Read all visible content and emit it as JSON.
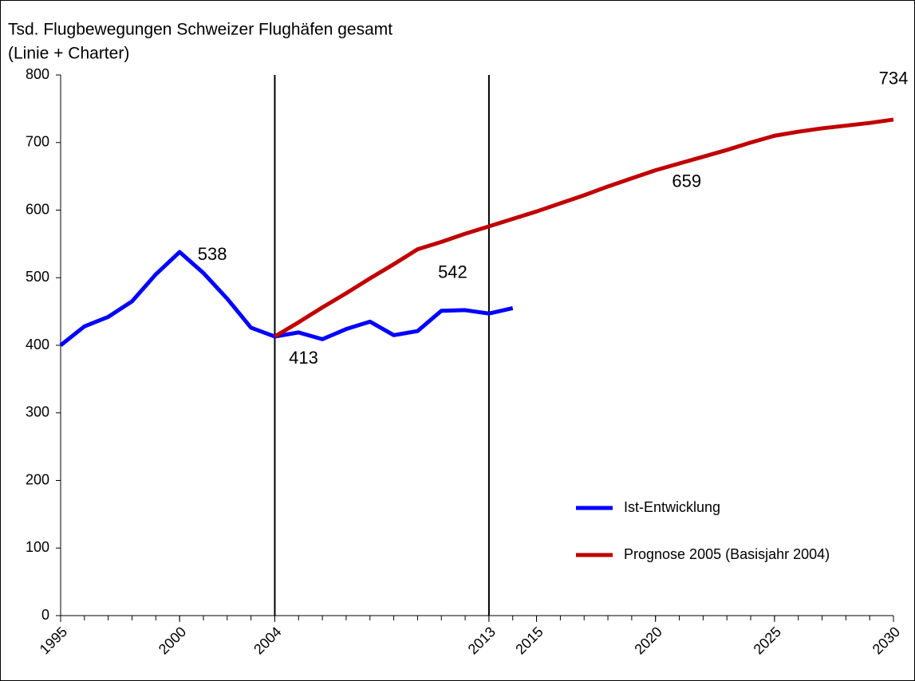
{
  "chart_data": {
    "type": "line",
    "title": "Tsd. Flugbewegungen Schweizer Flughäfen gesamt",
    "subtitle": "(Linie + Charter)",
    "x": [
      1995,
      1996,
      1997,
      1998,
      1999,
      2000,
      2001,
      2002,
      2003,
      2004,
      2005,
      2006,
      2007,
      2008,
      2009,
      2010,
      2011,
      2012,
      2013,
      2014,
      2015,
      2016,
      2017,
      2018,
      2019,
      2020,
      2021,
      2022,
      2023,
      2024,
      2025,
      2026,
      2027,
      2028,
      2029,
      2030
    ],
    "series": [
      {
        "name": "Ist-Entwicklung",
        "color": "#0000ff",
        "values": [
          400,
          428,
          442,
          465,
          505,
          538,
          507,
          469,
          426,
          413,
          419,
          409,
          424,
          435,
          415,
          421,
          451,
          452,
          447,
          455,
          null,
          null,
          null,
          null,
          null,
          null,
          null,
          null,
          null,
          null,
          null,
          null,
          null,
          null,
          null,
          null
        ]
      },
      {
        "name": "Prognose 2005 (Basisjahr 2004)",
        "color": "#c00000",
        "values": [
          null,
          null,
          null,
          null,
          null,
          null,
          null,
          null,
          null,
          413,
          434,
          456,
          477,
          499,
          520,
          542,
          553,
          565,
          576,
          587,
          598,
          610,
          622,
          635,
          647,
          659,
          669,
          679,
          689,
          700,
          710,
          716,
          721,
          725,
          729,
          734
        ]
      }
    ],
    "annotations": [
      {
        "text": "538",
        "x": 2000,
        "y": 538
      },
      {
        "text": "413",
        "x": 2004,
        "y": 413
      },
      {
        "text": "542",
        "x": 2010,
        "y": 542
      },
      {
        "text": "659",
        "x": 2020,
        "y": 659
      },
      {
        "text": "734",
        "x": 2030,
        "y": 734
      }
    ],
    "vlines": [
      2004,
      2013
    ],
    "xlim": [
      1995,
      2030
    ],
    "xticks": [
      1995,
      2000,
      2004,
      2013,
      2015,
      2020,
      2025,
      2030
    ],
    "ylim": [
      0,
      800
    ],
    "yticks": [
      0,
      100,
      200,
      300,
      400,
      500,
      600,
      700,
      800
    ],
    "grid": false,
    "legend": "lower right"
  }
}
